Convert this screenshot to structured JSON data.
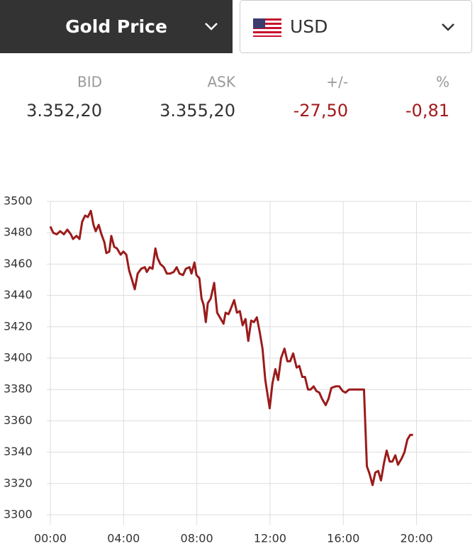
{
  "header": {
    "title": "Gold Price",
    "currency": "USD"
  },
  "quote": {
    "labels": [
      "BID",
      "ASK",
      "+/-",
      "%"
    ],
    "values": [
      "3.352,20",
      "3.355,20",
      "-27,50",
      "-0,81"
    ]
  },
  "chart_data": {
    "type": "line",
    "color": "#9b1b1b",
    "grid": true,
    "x": [
      0,
      0.16,
      0.35,
      0.54,
      0.74,
      0.93,
      1.12,
      1.24,
      1.43,
      1.59,
      1.74,
      1.9,
      2.05,
      2.21,
      2.36,
      2.48,
      2.64,
      2.79,
      2.95,
      3.06,
      3.22,
      3.33,
      3.49,
      3.64,
      3.84,
      3.99,
      4.15,
      4.3,
      4.46,
      4.61,
      4.77,
      4.96,
      5.16,
      5.27,
      5.43,
      5.58,
      5.74,
      5.85,
      6.01,
      6.2,
      6.36,
      6.55,
      6.74,
      6.9,
      7.05,
      7.25,
      7.4,
      7.6,
      7.71,
      7.87,
      7.98,
      8.14,
      8.26,
      8.37,
      8.49,
      8.6,
      8.76,
      8.95,
      9.11,
      9.26,
      9.46,
      9.57,
      9.73,
      9.84,
      10.04,
      10.19,
      10.35,
      10.5,
      10.66,
      10.81,
      10.97,
      11.12,
      11.28,
      11.43,
      11.59,
      11.74,
      11.86,
      11.98,
      12.13,
      12.29,
      12.44,
      12.6,
      12.79,
      12.95,
      13.1,
      13.26,
      13.45,
      13.6,
      13.76,
      13.91,
      14.07,
      14.22,
      14.38,
      14.53,
      14.69,
      14.84,
      15.04,
      15.19,
      15.35,
      15.58,
      15.78,
      15.97,
      16.12,
      16.32,
      16.63,
      17.13,
      17.29,
      17.44,
      17.6,
      17.75,
      17.91,
      18.06,
      18.22,
      18.37,
      18.53,
      18.68,
      18.84,
      18.99,
      19.19,
      19.34,
      19.5,
      19.65,
      19.81
    ],
    "values": [
      3484,
      3480,
      3479,
      3481,
      3479,
      3482,
      3479,
      3476,
      3478,
      3476,
      3487,
      3491,
      3490,
      3494,
      3485,
      3481,
      3485,
      3479,
      3474,
      3467,
      3468,
      3478,
      3471,
      3470,
      3466,
      3468,
      3466,
      3456,
      3450,
      3444,
      3454,
      3457,
      3458,
      3455,
      3458,
      3457,
      3470,
      3464,
      3460,
      3458,
      3454,
      3454,
      3455,
      3458,
      3454,
      3453,
      3457,
      3458,
      3454,
      3461,
      3453,
      3451,
      3438,
      3434,
      3423,
      3435,
      3438,
      3448,
      3429,
      3426,
      3422,
      3429,
      3428,
      3431,
      3437,
      3429,
      3430,
      3421,
      3425,
      3411,
      3424,
      3423,
      3426,
      3417,
      3406,
      3386,
      3377,
      3368,
      3384,
      3393,
      3386,
      3400,
      3406,
      3398,
      3398,
      3403,
      3394,
      3395,
      3388,
      3388,
      3380,
      3380,
      3382,
      3379,
      3378,
      3374,
      3370,
      3374,
      3381,
      3382,
      3382,
      3379,
      3378,
      3380,
      3380,
      3380,
      3331,
      3326,
      3319,
      3327,
      3328,
      3322,
      3333,
      3341,
      3334,
      3334,
      3338,
      3332,
      3336,
      3340,
      3348,
      3351,
      3351
    ],
    "xlim": [
      0,
      23
    ],
    "ylim": [
      3300,
      3500
    ],
    "yticks": [
      3300,
      3320,
      3340,
      3360,
      3380,
      3400,
      3420,
      3440,
      3460,
      3480,
      3500
    ],
    "xticks": [
      {
        "value": 0,
        "label": "00:00"
      },
      {
        "value": 4,
        "label": "04:00"
      },
      {
        "value": 8,
        "label": "08:00"
      },
      {
        "value": 12,
        "label": "12:00"
      },
      {
        "value": 16,
        "label": "16:00"
      },
      {
        "value": 20,
        "label": "20:00"
      }
    ]
  }
}
